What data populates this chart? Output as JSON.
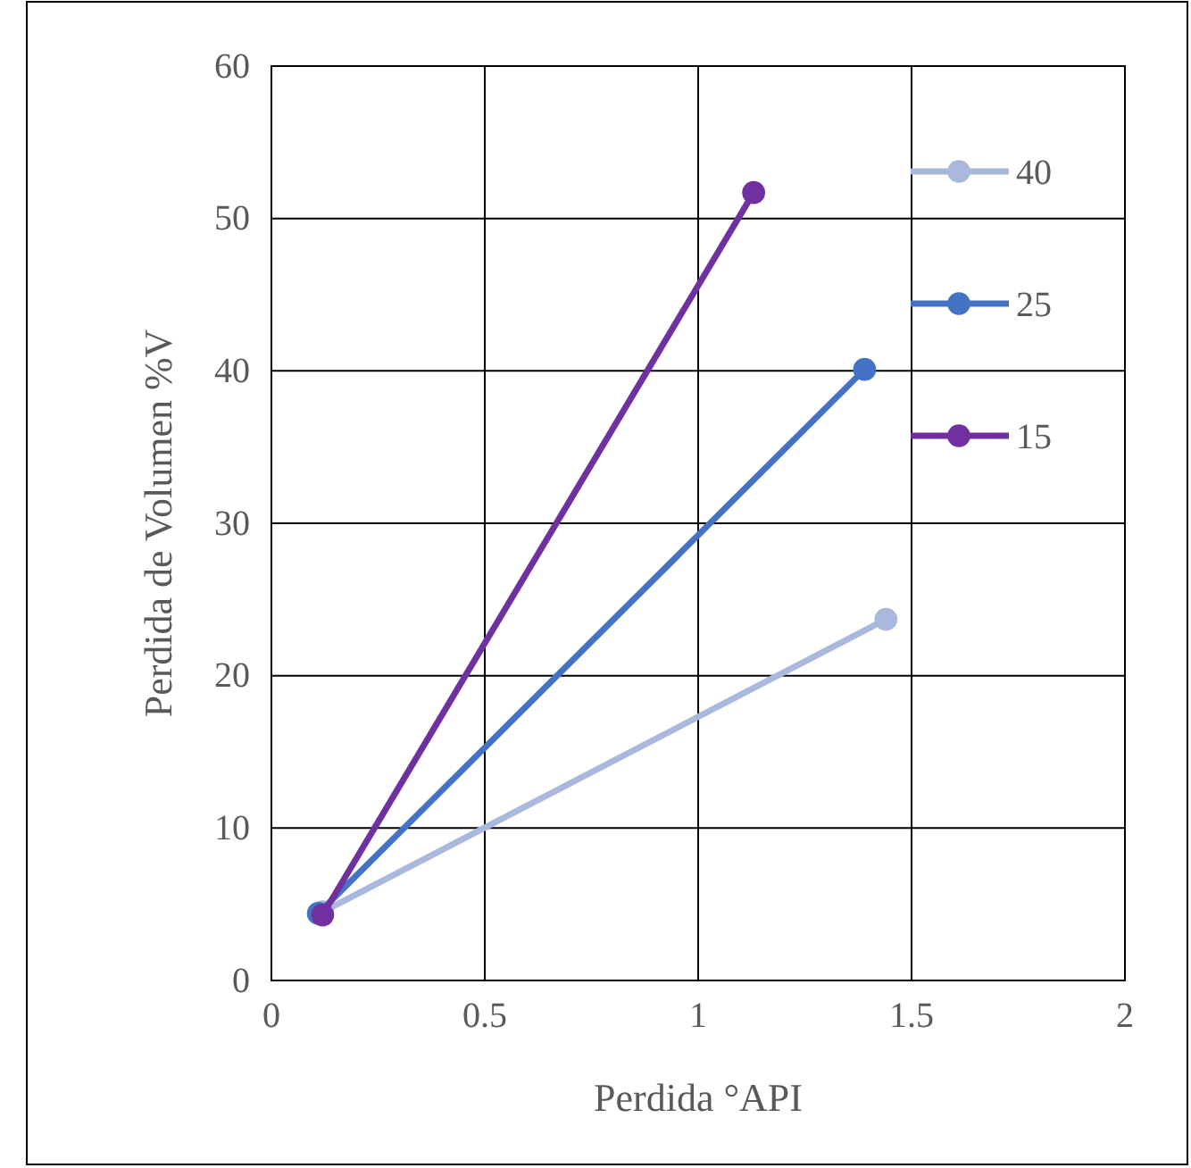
{
  "chart_data": {
    "type": "line",
    "xlabel": "Perdida °API",
    "ylabel": "Perdida de Volumen %V",
    "xlim": [
      0,
      2
    ],
    "xticks": [
      0,
      0.5,
      1,
      1.5,
      2
    ],
    "ylim": [
      0,
      60
    ],
    "yticks": [
      0,
      10,
      20,
      30,
      40,
      50,
      60
    ],
    "grid": true,
    "legend": "right",
    "marker": "circle",
    "line_style": "solid",
    "series": [
      {
        "name": "40",
        "color": "#a9b8dc",
        "x": [
          0.12,
          1.44
        ],
        "values": [
          4.5,
          23.7
        ]
      },
      {
        "name": "25",
        "color": "#4472c4",
        "x": [
          0.11,
          1.39
        ],
        "values": [
          4.4,
          40.1
        ]
      },
      {
        "name": "15",
        "color": "#7030a0",
        "x": [
          0.12,
          1.13
        ],
        "values": [
          4.3,
          51.7
        ]
      }
    ]
  }
}
